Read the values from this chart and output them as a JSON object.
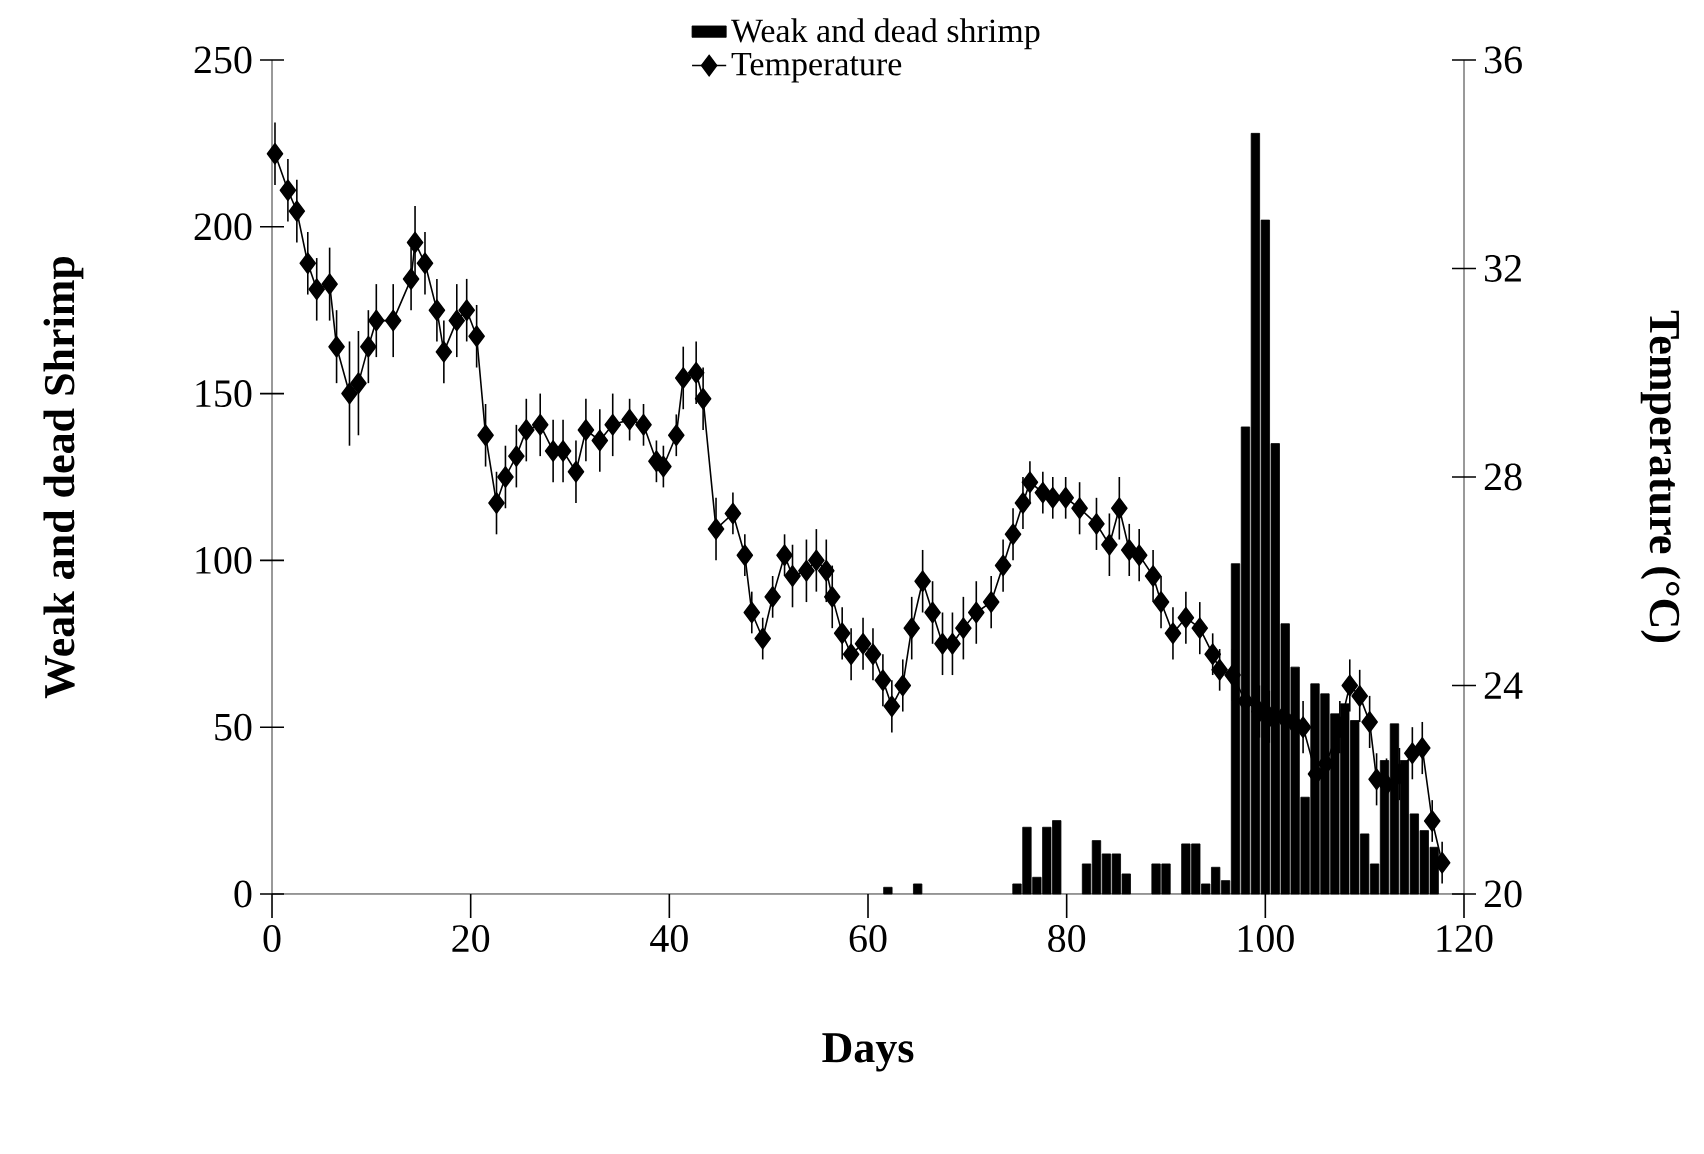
{
  "chart_data": {
    "type": "bar",
    "xlabel": "Days",
    "ylabel": "Weak and dead Shrimp",
    "y2label": "Temperature (°C)",
    "xlim": [
      0,
      120
    ],
    "xticks": [
      0,
      20,
      40,
      60,
      80,
      100,
      120
    ],
    "ylim": [
      0,
      250
    ],
    "yticks": [
      0,
      50,
      100,
      150,
      200,
      250
    ],
    "y2lim": [
      20,
      36
    ],
    "y2ticks": [
      20,
      24,
      28,
      32,
      36
    ],
    "legend": "top",
    "marker": "diamond",
    "series": [
      {
        "name": "Weak and dead shrimp",
        "color": "#000000",
        "x": [
          62,
          65,
          75,
          76,
          77,
          78,
          79,
          82,
          83,
          84,
          85,
          86,
          89,
          90,
          92,
          93,
          94,
          95,
          96,
          97,
          98,
          99,
          100,
          101,
          102,
          103,
          104,
          105,
          106,
          107,
          108,
          109,
          110,
          111,
          112,
          113,
          114,
          115,
          116,
          117
        ],
        "values": [
          2,
          3,
          3,
          20,
          5,
          20,
          22,
          9,
          16,
          12,
          12,
          6,
          9,
          9,
          15,
          15,
          3,
          8,
          4,
          99,
          140,
          228,
          202,
          135,
          81,
          68,
          29,
          63,
          60,
          54,
          57,
          52,
          18,
          9,
          40,
          51,
          40,
          24,
          19,
          14
        ]
      },
      {
        "name": "Temperature",
        "type": "line",
        "axis": "y2",
        "color": "#000000",
        "x": [
          0.3,
          1.6,
          2.5,
          3.6,
          4.5,
          5.8,
          6.5,
          7.8,
          8.7,
          9.7,
          10.5,
          12.2,
          14,
          14.4,
          15.4,
          16.6,
          17.3,
          18.6,
          19.6,
          20.6,
          21.5,
          22.6,
          23.5,
          24.6,
          25.6,
          27,
          28.3,
          29.3,
          30.6,
          31.6,
          33,
          34.3,
          36,
          37.4,
          38.7,
          39.4,
          40.7,
          41.4,
          42.7,
          43.4,
          44.7,
          46.4,
          47.6,
          48.3,
          49.4,
          50.4,
          51.6,
          52.4,
          53.8,
          54.8,
          55.8,
          56.4,
          57.4,
          58.3,
          59.5,
          60.5,
          61.5,
          62.4,
          63.5,
          64.4,
          65.5,
          66.5,
          67.5,
          68.5,
          69.6,
          70.9,
          72.4,
          73.6,
          74.6,
          75.6,
          76.3,
          77.6,
          78.6,
          79.9,
          81.3,
          83,
          84.3,
          85.3,
          86.3,
          87.3,
          88.7,
          89.5,
          90.7,
          92,
          93.4,
          94.7,
          95.4,
          96.7,
          98,
          99.4,
          100.4,
          101.8,
          102.8,
          103.8,
          105.1,
          106.1,
          107.5,
          108.5,
          109.5,
          110.5,
          111.2,
          112.2,
          113.5,
          114.8,
          115.8,
          116.8,
          117.8
        ],
        "values": [
          34.2,
          33.5,
          33.1,
          32.1,
          31.6,
          31.7,
          30.5,
          29.6,
          29.8,
          30.5,
          31.0,
          31.0,
          31.8,
          32.5,
          32.1,
          31.2,
          30.4,
          31.0,
          31.2,
          30.7,
          28.8,
          27.5,
          28.0,
          28.4,
          28.9,
          29.0,
          28.5,
          28.5,
          28.1,
          28.9,
          28.7,
          29.0,
          29.1,
          29.0,
          28.3,
          28.2,
          28.8,
          29.9,
          30.0,
          29.5,
          27.0,
          27.3,
          26.5,
          25.4,
          24.9,
          25.7,
          26.5,
          26.1,
          26.2,
          26.4,
          26.2,
          25.7,
          25.0,
          24.6,
          24.8,
          24.6,
          24.1,
          23.6,
          24.0,
          25.1,
          26.0,
          25.4,
          24.8,
          24.8,
          25.1,
          25.4,
          25.6,
          26.3,
          26.9,
          27.5,
          27.9,
          27.7,
          27.6,
          27.6,
          27.4,
          27.1,
          26.7,
          27.4,
          26.6,
          26.5,
          26.1,
          25.6,
          25.0,
          25.3,
          25.1,
          24.6,
          24.3,
          24.2,
          23.7,
          23.5,
          23.4,
          23.4,
          23.3,
          23.2,
          22.3,
          22.5,
          23.2,
          24.0,
          23.8,
          23.3,
          22.2,
          22.1,
          22.3,
          22.7,
          22.8,
          21.4,
          20.6
        ],
        "errors": [
          0.6,
          0.6,
          0.6,
          0.6,
          0.6,
          0.7,
          0.7,
          1.0,
          1.0,
          0.7,
          0.7,
          0.7,
          0.6,
          0.7,
          0.6,
          0.6,
          0.6,
          0.7,
          0.6,
          0.6,
          0.6,
          0.6,
          0.6,
          0.6,
          0.6,
          0.6,
          0.6,
          0.6,
          0.6,
          0.6,
          0.6,
          0.6,
          0.4,
          0.4,
          0.4,
          0.4,
          0.4,
          0.6,
          0.6,
          0.6,
          0.6,
          0.4,
          0.4,
          0.4,
          0.4,
          0.4,
          0.4,
          0.6,
          0.6,
          0.6,
          0.6,
          0.6,
          0.5,
          0.5,
          0.5,
          0.5,
          0.5,
          0.5,
          0.5,
          0.6,
          0.6,
          0.6,
          0.6,
          0.6,
          0.6,
          0.6,
          0.5,
          0.5,
          0.5,
          0.5,
          0.4,
          0.4,
          0.4,
          0.4,
          0.5,
          0.5,
          0.6,
          0.6,
          0.5,
          0.5,
          0.5,
          0.5,
          0.5,
          0.5,
          0.5,
          0.4,
          0.4,
          0.5,
          0.5,
          0.5,
          0.5,
          0.5,
          0.5,
          0.5,
          0.5,
          0.5,
          0.5,
          0.5,
          0.5,
          0.5,
          0.5,
          0.5,
          0.5,
          0.5,
          0.5,
          0.4,
          0.4
        ]
      }
    ]
  }
}
